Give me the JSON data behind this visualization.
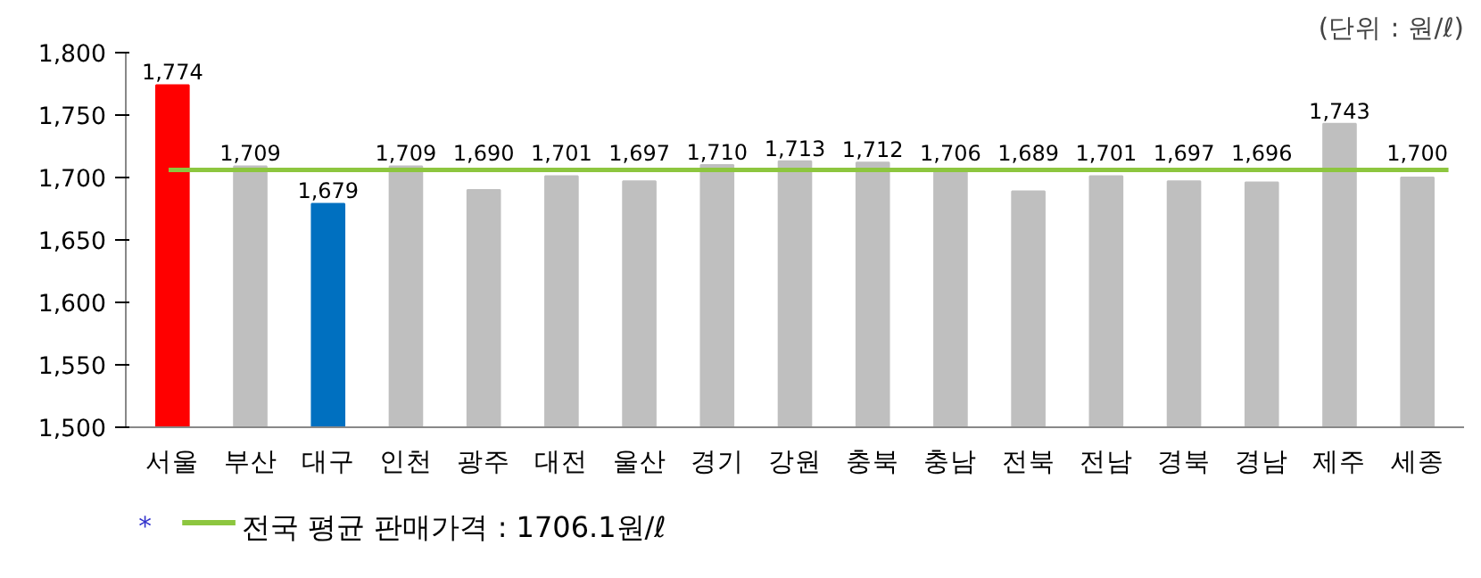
{
  "chart_data": {
    "type": "bar",
    "categories": [
      "서울",
      "부산",
      "대구",
      "인천",
      "광주",
      "대전",
      "울산",
      "경기",
      "강원",
      "충북",
      "충남",
      "전북",
      "전남",
      "경북",
      "경남",
      "제주",
      "세종"
    ],
    "values": [
      1774,
      1709,
      1679,
      1709,
      1690,
      1701,
      1697,
      1710,
      1713,
      1712,
      1706,
      1689,
      1701,
      1697,
      1696,
      1743,
      1700
    ],
    "colors": [
      "#ff0000",
      "#bfbfbf",
      "#0070c0",
      "#bfbfbf",
      "#bfbfbf",
      "#bfbfbf",
      "#bfbfbf",
      "#bfbfbf",
      "#bfbfbf",
      "#bfbfbf",
      "#bfbfbf",
      "#bfbfbf",
      "#bfbfbf",
      "#bfbfbf",
      "#bfbfbf",
      "#bfbfbf",
      "#bfbfbf"
    ],
    "value_labels": [
      "1,774",
      "1,709",
      "1,679",
      "1,709",
      "1,690",
      "1,701",
      "1,697",
      "1,710",
      "1,713",
      "1,712",
      "1,706",
      "1,689",
      "1,701",
      "1,697",
      "1,696",
      "1,743",
      "1,700"
    ],
    "ylim": [
      1500,
      1800
    ],
    "yticks": [
      {
        "value": 1500,
        "label": "1,500"
      },
      {
        "value": 1550,
        "label": "1,550"
      },
      {
        "value": 1600,
        "label": "1,600"
      },
      {
        "value": 1650,
        "label": "1,650"
      },
      {
        "value": 1700,
        "label": "1,700"
      },
      {
        "value": 1750,
        "label": "1,750"
      },
      {
        "value": 1800,
        "label": "1,800"
      }
    ],
    "ref_lines": [
      {
        "axis": "y",
        "value": 1706.1,
        "label": "전국 평균 판매가격 : 1706.1원/ℓ",
        "color": "#8dc63f",
        "line_style": "solid"
      }
    ],
    "legend": "bottom left",
    "grid": false,
    "annotations": [
      "(단위 : 원/ℓ)",
      "*"
    ]
  }
}
